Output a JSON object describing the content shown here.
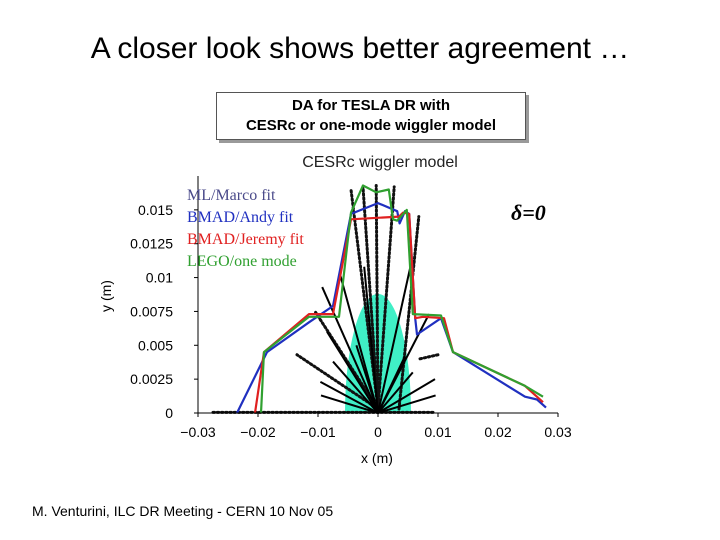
{
  "slide": {
    "title": "A closer look shows better agreement …",
    "box_line1": "DA for TESLA DR with",
    "box_line2": "CESRc or one-mode wiggler model",
    "footer": "M. Venturini, ILC DR Meeting - CERN 10 Nov 05"
  },
  "chart_data": {
    "type": "line",
    "title": "CESRc wiggler model",
    "xlabel": "x (m)",
    "ylabel": "y (m)",
    "annotation": "δ=0",
    "xlim": [
      -0.03,
      0.03
    ],
    "ylim": [
      0,
      0.0175
    ],
    "xticks": [
      -0.03,
      -0.02,
      -0.01,
      0,
      0.01,
      0.02,
      0.03
    ],
    "xtick_labels": [
      "−0.03",
      "−0.02",
      "−0.01",
      "0",
      "0.01",
      "0.02",
      "0.03"
    ],
    "yticks": [
      0,
      0.0025,
      0.005,
      0.0075,
      0.01,
      0.0125,
      0.015
    ],
    "ytick_labels": [
      "0",
      "0.0025",
      "0.005",
      "0.0075",
      "0.01",
      "0.0125",
      "0.015"
    ],
    "colors": {
      "shade": "#40efc6",
      "rays": "#000000",
      "dots": "#111111",
      "blue": "#2030c0",
      "red": "#e02020",
      "green": "#30a030",
      "axis": "#000000"
    },
    "shaded_region": {
      "semi_axis_x": 0.0055,
      "semi_axis_y": 0.0088
    },
    "rays": [
      [
        0,
        0,
        -0.0093,
        0.0093
      ],
      [
        0,
        0,
        -0.0063,
        0.0102
      ],
      [
        0,
        0,
        -0.0023,
        0.0108
      ],
      [
        0,
        0,
        0.0054,
        0.0108
      ],
      [
        0,
        0,
        0.0085,
        0.0073
      ],
      [
        0,
        0,
        -0.0085,
        0.006
      ],
      [
        0,
        0,
        -0.0075,
        0.0038
      ],
      [
        0,
        0,
        -0.0036,
        0.005
      ],
      [
        0,
        0,
        0.0045,
        0.0042
      ],
      [
        0,
        0,
        0.0058,
        0.003
      ],
      [
        0,
        0,
        0.0095,
        0.0025
      ],
      [
        0,
        0,
        0.0096,
        0.0013
      ],
      [
        0,
        0,
        -0.0095,
        0.0013
      ],
      [
        0,
        0,
        -0.0096,
        0.0023
      ]
    ],
    "dot_tracks": [
      [
        0,
        0.0003,
        -0.0045,
        0.0165
      ],
      [
        0,
        0.0003,
        -0.0025,
        0.0167
      ],
      [
        0,
        0.0003,
        -0.0003,
        0.0168
      ],
      [
        0,
        0.0003,
        0.0027,
        0.0167
      ],
      [
        0.0035,
        0.0003,
        0.0068,
        0.0145
      ],
      [
        0,
        0.0003,
        -0.0105,
        0.0075
      ],
      [
        0,
        0.0003,
        -0.0135,
        0.0043
      ],
      [
        -0.0275,
        5e-05,
        0.0095,
        5e-05
      ],
      [
        0.007,
        0.004,
        0.01,
        0.0043
      ]
    ],
    "series": [
      {
        "name": "ML/Marco fit",
        "color": "#4a4a8a",
        "points": []
      },
      {
        "name": "BMAD/Andy fit",
        "color": "#2030c0",
        "points": [
          [
            -0.0235,
            0
          ],
          [
            -0.0185,
            0.0045
          ],
          [
            -0.0115,
            0.0067
          ],
          [
            -0.0075,
            0.0079
          ],
          [
            -0.0045,
            0.0147
          ],
          [
            0,
            0.0155
          ],
          [
            0.0032,
            0.0149
          ],
          [
            0.0036,
            0.014
          ],
          [
            0.0045,
            0.0149
          ],
          [
            0.0052,
            0.0147
          ],
          [
            0.0062,
            0.007
          ],
          [
            0.0065,
            0.0058
          ],
          [
            0.0105,
            0.007
          ],
          [
            0.0125,
            0.0045
          ],
          [
            0.0245,
            0.0012
          ],
          [
            0.0265,
            0.001
          ],
          [
            0.028,
            0.0004
          ]
        ]
      },
      {
        "name": "BMAD/Jeremy fit",
        "color": "#e02020",
        "points": [
          [
            -0.0205,
            0
          ],
          [
            -0.019,
            0.0045
          ],
          [
            -0.0115,
            0.0073
          ],
          [
            -0.0075,
            0.0073
          ],
          [
            -0.0045,
            0.0143
          ],
          [
            0.0035,
            0.0145
          ],
          [
            0.0042,
            0.0148
          ],
          [
            0.0052,
            0.0147
          ],
          [
            0.0062,
            0.007
          ],
          [
            0.0075,
            0.0071
          ],
          [
            0.011,
            0.007
          ],
          [
            0.0125,
            0.0045
          ],
          [
            0.0245,
            0.002
          ],
          [
            0.0275,
            0.0008
          ]
        ]
      },
      {
        "name": "LEGO/one mode",
        "color": "#30a030",
        "points": [
          [
            -0.0195,
            0
          ],
          [
            -0.019,
            0.0045
          ],
          [
            -0.0115,
            0.0071
          ],
          [
            -0.0065,
            0.0071
          ],
          [
            -0.0045,
            0.0148
          ],
          [
            -0.0025,
            0.0168
          ],
          [
            -0.0003,
            0.0163
          ],
          [
            0.0018,
            0.0165
          ],
          [
            0.0025,
            0.0143
          ],
          [
            0.0032,
            0.0142
          ],
          [
            0.0048,
            0.015
          ],
          [
            0.0058,
            0.0073
          ],
          [
            0.0105,
            0.0072
          ],
          [
            0.0125,
            0.0045
          ],
          [
            0.0245,
            0.002
          ],
          [
            0.0275,
            0.0012
          ]
        ]
      }
    ]
  }
}
